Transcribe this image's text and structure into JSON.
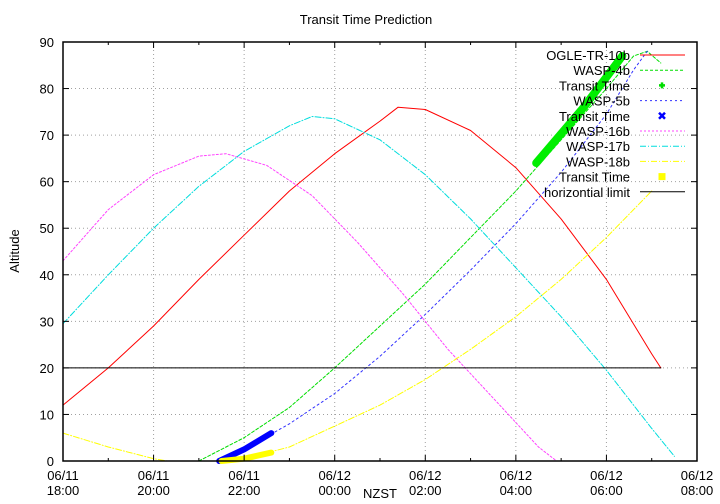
{
  "chart_data": {
    "type": "line",
    "title": "Transit Time Prediction",
    "xlabel": "NZST",
    "ylabel": "Altitude",
    "xlim_hours_from_start": [
      0,
      14
    ],
    "ylim": [
      0,
      90
    ],
    "grid": true,
    "legend_position": "top-right (inside)",
    "x_ticks": [
      {
        "h": 0,
        "l1": "06/11",
        "l2": "18:00"
      },
      {
        "h": 2,
        "l1": "06/11",
        "l2": "20:00"
      },
      {
        "h": 4,
        "l1": "06/11",
        "l2": "22:00"
      },
      {
        "h": 6,
        "l1": "06/12",
        "l2": "00:00"
      },
      {
        "h": 8,
        "l1": "06/12",
        "l2": "02:00"
      },
      {
        "h": 10,
        "l1": "06/12",
        "l2": "04:00"
      },
      {
        "h": 12,
        "l1": "06/12",
        "l2": "06:00"
      },
      {
        "h": 14,
        "l1": "06/12",
        "l2": "08:00"
      }
    ],
    "y_ticks": [
      0,
      10,
      20,
      30,
      40,
      50,
      60,
      70,
      80,
      90
    ],
    "series": [
      {
        "name": "OGLE-TR-10b",
        "color": "#ff0000",
        "dash": "",
        "width": 1,
        "points": [
          [
            0,
            12
          ],
          [
            1,
            20
          ],
          [
            2,
            29
          ],
          [
            3,
            39
          ],
          [
            4,
            48.5
          ],
          [
            5,
            58
          ],
          [
            6,
            66
          ],
          [
            7,
            73
          ],
          [
            7.4,
            76
          ],
          [
            8,
            75.5
          ],
          [
            9,
            71
          ],
          [
            10,
            63
          ],
          [
            11,
            52
          ],
          [
            12,
            39
          ],
          [
            13,
            23
          ],
          [
            13.2,
            20
          ]
        ]
      },
      {
        "name": "WASP-4b",
        "color": "#00dd00",
        "dash": "3,2",
        "width": 1,
        "points": [
          [
            3.0,
            0
          ],
          [
            4,
            5
          ],
          [
            5,
            11.5
          ],
          [
            6,
            20
          ],
          [
            7,
            29
          ],
          [
            8,
            38
          ],
          [
            9,
            48
          ],
          [
            10,
            58
          ],
          [
            11,
            69
          ],
          [
            12,
            80
          ],
          [
            12.6,
            87
          ],
          [
            12.9,
            88
          ],
          [
            13.2,
            85.5
          ]
        ]
      },
      {
        "name": "Transit Time",
        "marker_of": "WASP-4b",
        "color": "#00ee00",
        "type": "band",
        "width": 8,
        "points": [
          [
            10.45,
            64
          ],
          [
            11.5,
            76
          ],
          [
            12.35,
            87
          ]
        ]
      },
      {
        "name": "WASP-5b",
        "color": "#3333ff",
        "dash": "2,3",
        "width": 1,
        "points": [
          [
            3.4,
            0
          ],
          [
            4,
            2.5
          ],
          [
            5,
            8
          ],
          [
            6,
            14.5
          ],
          [
            7,
            22.5
          ],
          [
            8,
            31.5
          ],
          [
            9,
            41
          ],
          [
            10,
            51
          ],
          [
            11,
            62
          ],
          [
            12,
            74.5
          ],
          [
            12.6,
            84
          ],
          [
            12.9,
            88
          ]
        ]
      },
      {
        "name": "Transit Time",
        "marker_of": "WASP-5b",
        "color": "#0000ff",
        "type": "band",
        "width": 6,
        "points": [
          [
            3.45,
            0
          ],
          [
            4,
            2.5
          ],
          [
            4.6,
            6
          ]
        ]
      },
      {
        "name": "WASP-16b",
        "color": "#ff44ff",
        "dash": "2,2",
        "width": 1,
        "points": [
          [
            0,
            43
          ],
          [
            1,
            54
          ],
          [
            2,
            61.5
          ],
          [
            3,
            65.5
          ],
          [
            3.6,
            66
          ],
          [
            4.5,
            63.5
          ],
          [
            5.5,
            57
          ],
          [
            6.5,
            47
          ],
          [
            7.5,
            36
          ],
          [
            8.5,
            24
          ],
          [
            9.5,
            13.5
          ],
          [
            10.5,
            3
          ],
          [
            10.9,
            0
          ]
        ]
      },
      {
        "name": "WASP-17b",
        "color": "#00dddd",
        "dash": "6,2,1,2",
        "width": 1,
        "points": [
          [
            0,
            29.5
          ],
          [
            1,
            40
          ],
          [
            2,
            50
          ],
          [
            3,
            59
          ],
          [
            4,
            66.5
          ],
          [
            5,
            72
          ],
          [
            5.5,
            74
          ],
          [
            6,
            73.5
          ],
          [
            7,
            69
          ],
          [
            8,
            61.5
          ],
          [
            9,
            52
          ],
          [
            10,
            41.5
          ],
          [
            11,
            31
          ],
          [
            12,
            19.5
          ],
          [
            13,
            7
          ],
          [
            13.5,
            1
          ]
        ]
      },
      {
        "name": "WASP-18b",
        "color": "#ffff00",
        "dash": "6,2,1,2",
        "width": 1,
        "points": [
          [
            0,
            6
          ],
          [
            1,
            3
          ],
          [
            2,
            0.5
          ],
          [
            2.3,
            0
          ],
          [
            3.5,
            0
          ],
          [
            4,
            0.5
          ],
          [
            5,
            3
          ],
          [
            6,
            7.5
          ],
          [
            7,
            12
          ],
          [
            8,
            17.5
          ],
          [
            9,
            24
          ],
          [
            10,
            31
          ],
          [
            11,
            39
          ],
          [
            12,
            48
          ],
          [
            13,
            58
          ]
        ]
      },
      {
        "name": "Transit Time",
        "marker_of": "WASP-18b",
        "color": "#ffff00",
        "type": "band",
        "width": 6,
        "points": [
          [
            3.5,
            0
          ],
          [
            4,
            0.5
          ],
          [
            4.6,
            1.8
          ]
        ]
      },
      {
        "name": "horizontial limit",
        "color": "#000000",
        "dash": "",
        "width": 1,
        "points": [
          [
            0,
            20
          ],
          [
            13.2,
            20
          ]
        ]
      }
    ],
    "legend": [
      {
        "label": "OGLE-TR-10b",
        "color": "#ff0000",
        "kind": "line",
        "dash": ""
      },
      {
        "label": "WASP-4b",
        "color": "#00dd00",
        "kind": "line",
        "dash": "3,2"
      },
      {
        "label": "Transit Time",
        "color": "#00dd00",
        "kind": "plus"
      },
      {
        "label": "WASP-5b",
        "color": "#3333ff",
        "kind": "line",
        "dash": "2,3"
      },
      {
        "label": "Transit Time",
        "color": "#0000ff",
        "kind": "cross"
      },
      {
        "label": "WASP-16b",
        "color": "#ff44ff",
        "kind": "line",
        "dash": "2,2"
      },
      {
        "label": "WASP-17b",
        "color": "#00dddd",
        "kind": "line",
        "dash": "6,2,1,2"
      },
      {
        "label": "WASP-18b",
        "color": "#ffff00",
        "kind": "line",
        "dash": "6,2,1,2"
      },
      {
        "label": "Transit Time",
        "color": "#ffff00",
        "kind": "square"
      },
      {
        "label": "horizontial limit",
        "color": "#000000",
        "kind": "line",
        "dash": ""
      }
    ]
  }
}
